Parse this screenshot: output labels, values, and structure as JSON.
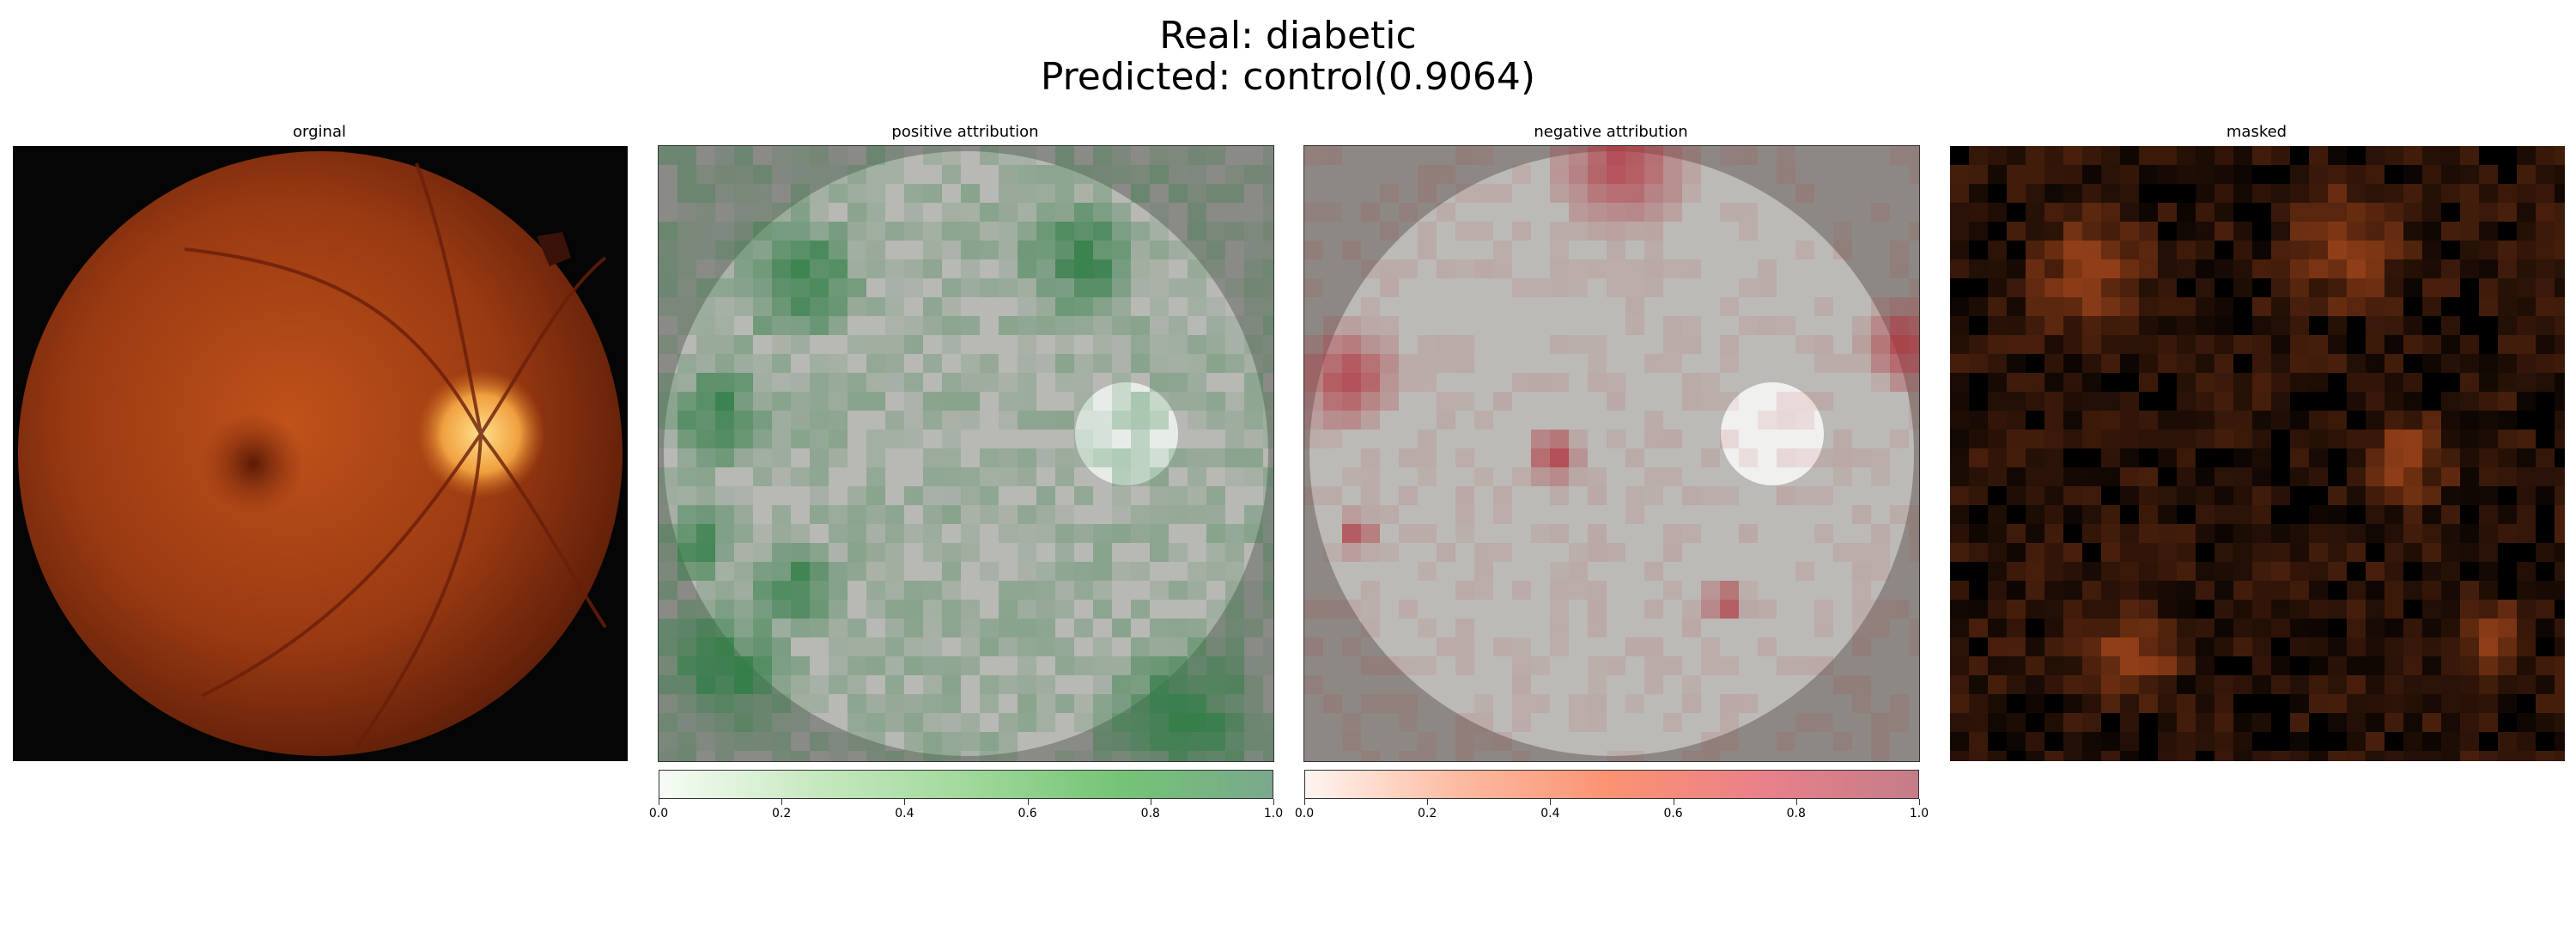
{
  "figure": {
    "title_line1": "Real: diabetic",
    "title_line2": "Predicted: control(0.9064)"
  },
  "panels": [
    {
      "title": "orginal"
    },
    {
      "title": "positive attribution"
    },
    {
      "title": "negative attribution"
    },
    {
      "title": "masked"
    }
  ],
  "colorbars": {
    "positive": {
      "ticks": [
        "0.0",
        "0.2",
        "0.4",
        "0.6",
        "0.8",
        "1.0"
      ],
      "low_color": "#f7fcf5",
      "high_color": "#7aa98c"
    },
    "negative": {
      "ticks": [
        "0.0",
        "0.2",
        "0.4",
        "0.6",
        "0.8",
        "1.0"
      ],
      "low_color": "#fff5f0",
      "high_color": "#c47d88"
    }
  },
  "icons": {
    "fundus": "retina-fundus-image",
    "positive": "positive-attribution-heatmap",
    "negative": "negative-attribution-heatmap",
    "masked": "masked-fundus-image"
  }
}
